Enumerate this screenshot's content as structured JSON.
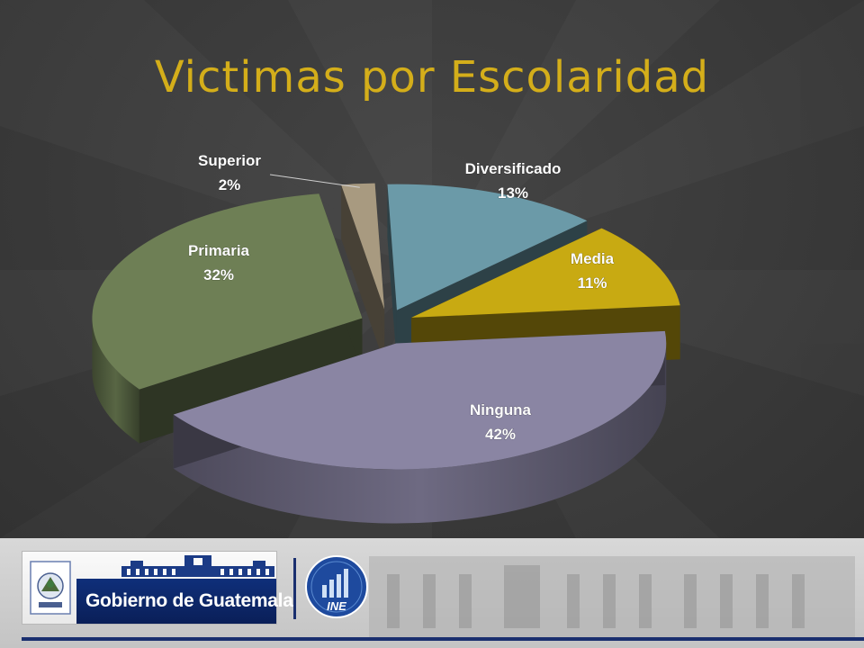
{
  "slide": {
    "title": "Victimas por Escolaridad",
    "title_color": "#d4ae1a",
    "background_color": "#3a3a3a"
  },
  "chart_data": {
    "type": "pie",
    "title": "Victimas por Escolaridad",
    "slices": [
      {
        "label": "Diversificado",
        "value": 13,
        "value_label": "13%",
        "color": "#6b9aa8",
        "exploded": false
      },
      {
        "label": "Media",
        "value": 11,
        "value_label": "11%",
        "color": "#c8aa12",
        "exploded": false
      },
      {
        "label": "Ninguna",
        "value": 42,
        "value_label": "42%",
        "color": "#8a85a3",
        "exploded": false
      },
      {
        "label": "Primaria",
        "value": 32,
        "value_label": "32%",
        "color": "#6e7f55",
        "exploded": false
      },
      {
        "label": "Superior",
        "value": 2,
        "value_label": "2%",
        "color": "#a89a80",
        "exploded": false
      }
    ],
    "style": "3d-exploded",
    "legend": "none"
  },
  "footer": {
    "government_text": "Gobierno de Guatemala",
    "ine_logo_text": "INE",
    "accent_color": "#1a2f6f"
  }
}
